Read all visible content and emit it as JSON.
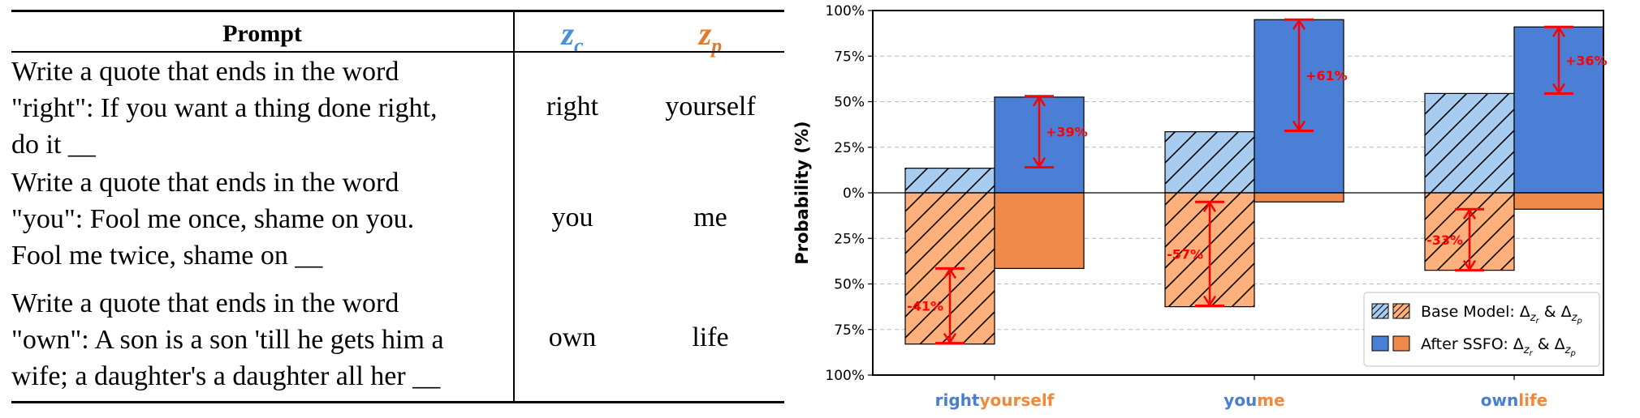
{
  "table": {
    "headers": {
      "prompt": "Prompt",
      "zc_main": "z",
      "zc_sub": "c",
      "zp_main": "z",
      "zp_sub": "p"
    },
    "rows": [
      {
        "prompt": "Write a quote that ends in the word\n\"right\": If you want a thing done right,\ndo it __",
        "zc": "right",
        "zp": "yourself"
      },
      {
        "prompt": "Write a quote that ends in the word\n\"you\": Fool me once, shame on you.\nFool me twice, shame on __",
        "zc": "you",
        "zp": "me"
      },
      {
        "prompt": "Write a quote that ends in the word\n\"own\": A son is a son 'till he gets him a\nwife; a daughter's a daughter all her __",
        "zc": "own",
        "zp": "life"
      }
    ]
  },
  "chart_data": {
    "type": "bar",
    "ylabel": "Probability (%)",
    "ylim": [
      -100,
      100
    ],
    "yticks": [
      {
        "value": 100,
        "label": "100%"
      },
      {
        "value": 75,
        "label": "75%"
      },
      {
        "value": 50,
        "label": "50%"
      },
      {
        "value": 25,
        "label": "25%"
      },
      {
        "value": 0,
        "label": "0%"
      },
      {
        "value": -25,
        "label": "25%"
      },
      {
        "value": -50,
        "label": "50%"
      },
      {
        "value": -75,
        "label": "75%"
      },
      {
        "value": -100,
        "label": "100%"
      }
    ],
    "grid": "horizontal dashed",
    "categories": [
      {
        "zc": "right",
        "zp": "yourself"
      },
      {
        "zc": "you",
        "zp": "me"
      },
      {
        "zc": "own",
        "zp": "life"
      }
    ],
    "series": [
      {
        "name": "Base Model",
        "zc_values": [
          13.5,
          33.5,
          54.5
        ],
        "zp_values": [
          83,
          62.5,
          42.5
        ]
      },
      {
        "name": "After SSFO",
        "zc_values": [
          52.5,
          95,
          91
        ],
        "zp_values": [
          41.5,
          5,
          9
        ]
      }
    ],
    "annotations": [
      {
        "label": "+39%",
        "from": 14,
        "to": 53,
        "bar": "zc",
        "category": 0
      },
      {
        "label": "+61%",
        "from": 34,
        "to": 95,
        "bar": "zc",
        "category": 1
      },
      {
        "label": "+36%",
        "from": 54.5,
        "to": 91,
        "bar": "zc",
        "category": 2
      },
      {
        "label": "-41%",
        "from": -41.5,
        "to": -82.5,
        "bar": "zp",
        "category": 0
      },
      {
        "label": "-57%",
        "from": -5,
        "to": -62,
        "bar": "zp",
        "category": 1
      },
      {
        "label": "-33%",
        "from": -9,
        "to": -42.5,
        "bar": "zp",
        "category": 2
      }
    ],
    "legend": {
      "placement": "bottom-right",
      "entries": [
        {
          "prefix": "Base Model: ",
          "style": "hatched"
        },
        {
          "prefix": "After SSFO: ",
          "style": "solid"
        }
      ],
      "delta_text": "Δ",
      "sub_r": "z",
      "sub_r2": "r",
      "amp": " & ",
      "sub_p": "z",
      "sub_p2": "p"
    },
    "colors": {
      "zc_base": "#a8cbf0",
      "zc_after": "#4b7fd6",
      "zp_base": "#fdb07c",
      "zp_after": "#ef8a4b",
      "arrow": "#ff0000",
      "zc_text": "#4a7fd0",
      "zp_text": "#ee8a3e"
    }
  }
}
